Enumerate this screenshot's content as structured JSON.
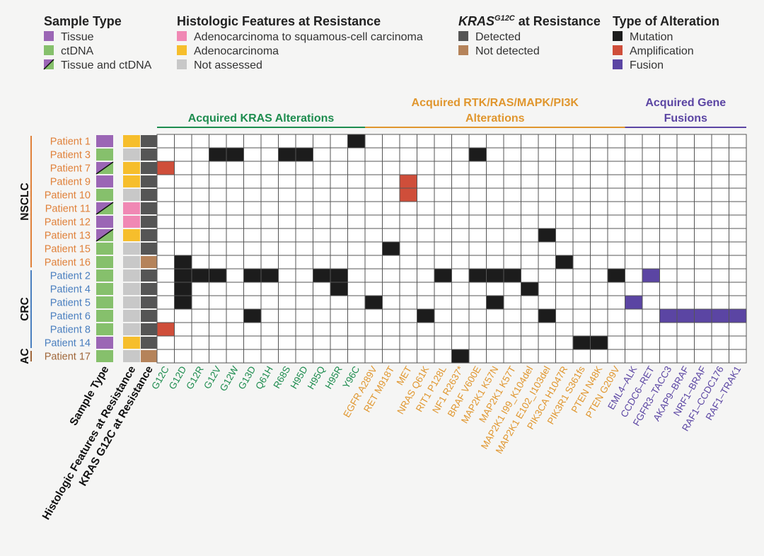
{
  "colors": {
    "tissue": "#9b66b5",
    "ctdna": "#86c06c",
    "squamous": "#f088b4",
    "adeno": "#f6be2c",
    "not_assessed": "#c8c8c8",
    "detected": "#555555",
    "not_detected": "#b5835a",
    "mutation": "#1c1c1c",
    "amplification": "#cf4e3a",
    "fusion": "#5b45a3",
    "kras_group": "#1d8c4e",
    "rtk_group": "#e0962e",
    "fusion_group": "#5b45a3",
    "nsclc": "#e0813a",
    "crc": "#4a7fbf",
    "ac": "#a0673a",
    "grid": "#555555",
    "cell_empty": "#ffffff"
  },
  "legend": {
    "sample_type": {
      "title": "Sample Type",
      "items": [
        {
          "key": "tissue",
          "label": "Tissue"
        },
        {
          "key": "ctdna",
          "label": "ctDNA"
        },
        {
          "key": "both",
          "label": "Tissue and ctDNA"
        }
      ]
    },
    "histologic": {
      "title": "Histologic Features at Resistance",
      "items": [
        {
          "key": "squamous",
          "label": "Adenocarcinoma to squamous-cell carcinoma"
        },
        {
          "key": "adeno",
          "label": "Adenocarcinoma"
        },
        {
          "key": "not_assessed",
          "label": "Not assessed"
        }
      ]
    },
    "kras": {
      "title_main": "KRAS",
      "title_sup": "G12C",
      "title_rest": " at Resistance",
      "items": [
        {
          "key": "detected",
          "label": "Detected"
        },
        {
          "key": "not_detected",
          "label": "Not detected"
        }
      ]
    },
    "alteration": {
      "title": "Type of Alteration",
      "items": [
        {
          "key": "mutation",
          "label": "Mutation"
        },
        {
          "key": "amplification",
          "label": "Amplification"
        },
        {
          "key": "fusion",
          "label": "Fusion"
        }
      ]
    }
  },
  "group_headers": [
    {
      "lines": [
        "Acquired KRAS Alterations"
      ],
      "from": 0,
      "to": 11,
      "color_key": "kras_group"
    },
    {
      "lines": [
        "Acquired RTK/RAS/MAPK/PI3K",
        "Alterations"
      ],
      "from": 12,
      "to": 26,
      "color_key": "rtk_group"
    },
    {
      "lines": [
        "Acquired Gene",
        "Fusions"
      ],
      "from": 27,
      "to": 33,
      "color_key": "fusion_group"
    }
  ],
  "annotation_column_labels": [
    "Sample Type",
    "Histologic Features at Resistance",
    "KRAS G12C at Resistance"
  ],
  "columns": [
    {
      "label": "G12C",
      "group": "kras"
    },
    {
      "label": "G12D",
      "group": "kras"
    },
    {
      "label": "G12R",
      "group": "kras"
    },
    {
      "label": "G12V",
      "group": "kras"
    },
    {
      "label": "G12W",
      "group": "kras"
    },
    {
      "label": "G13D",
      "group": "kras"
    },
    {
      "label": "Q61H",
      "group": "kras"
    },
    {
      "label": "R68S",
      "group": "kras"
    },
    {
      "label": "H95D",
      "group": "kras"
    },
    {
      "label": "H95Q",
      "group": "kras"
    },
    {
      "label": "H95R",
      "group": "kras"
    },
    {
      "label": "Y96C",
      "group": "kras"
    },
    {
      "label": "EGFR A289V",
      "group": "rtk"
    },
    {
      "label": "RET M918T",
      "group": "rtk"
    },
    {
      "label": "MET",
      "group": "rtk"
    },
    {
      "label": "NRAS Q61K",
      "group": "rtk"
    },
    {
      "label": "RIT1 P128L",
      "group": "rtk"
    },
    {
      "label": "NF1 R2637*",
      "group": "rtk"
    },
    {
      "label": "BRAF V600E",
      "group": "rtk"
    },
    {
      "label": "MAP2K1 K57N",
      "group": "rtk"
    },
    {
      "label": "MAP2K1 K57T",
      "group": "rtk"
    },
    {
      "label": "MAP2K1 I99_K104del",
      "group": "rtk"
    },
    {
      "label": "MAP2K1 E102_I103del",
      "group": "rtk"
    },
    {
      "label": "PIK3CA H1047R",
      "group": "rtk"
    },
    {
      "label": "PIK3R1 S361fs",
      "group": "rtk"
    },
    {
      "label": "PTEN N48K",
      "group": "rtk"
    },
    {
      "label": "PTEN G209V",
      "group": "rtk"
    },
    {
      "label": "EML4–ALK",
      "group": "fusion"
    },
    {
      "label": "CCDC6–RET",
      "group": "fusion"
    },
    {
      "label": "FGFR3–TACC3",
      "group": "fusion"
    },
    {
      "label": "AKAP9–BRAF",
      "group": "fusion"
    },
    {
      "label": "NRF1–BRAF",
      "group": "fusion"
    },
    {
      "label": "RAF1–CCDC176",
      "group": "fusion"
    },
    {
      "label": "RAF1–TRAK1",
      "group": "fusion"
    }
  ],
  "cancer_groups": [
    {
      "label": "NSCLC",
      "from": 0,
      "to": 9,
      "color_key": "nsclc"
    },
    {
      "label": "CRC",
      "from": 10,
      "to": 15,
      "color_key": "crc"
    },
    {
      "label": "AC",
      "from": 16,
      "to": 16,
      "color_key": "ac"
    }
  ],
  "patients": [
    {
      "label": "Patient 1",
      "sample": "tissue",
      "histology": "adeno",
      "kras": "detected",
      "alterations": [
        [
          11,
          "mutation"
        ]
      ]
    },
    {
      "label": "Patient 3",
      "sample": "ctdna",
      "histology": "not_assessed",
      "kras": "detected",
      "alterations": [
        [
          3,
          "mutation"
        ],
        [
          4,
          "mutation"
        ],
        [
          7,
          "mutation"
        ],
        [
          8,
          "mutation"
        ],
        [
          18,
          "mutation"
        ]
      ]
    },
    {
      "label": "Patient 7",
      "sample": "both",
      "histology": "adeno",
      "kras": "detected",
      "alterations": [
        [
          0,
          "amplification"
        ]
      ]
    },
    {
      "label": "Patient 9",
      "sample": "tissue",
      "histology": "adeno",
      "kras": "detected",
      "alterations": [
        [
          14,
          "amplification"
        ]
      ]
    },
    {
      "label": "Patient 10",
      "sample": "ctdna",
      "histology": "not_assessed",
      "kras": "detected",
      "alterations": [
        [
          14,
          "amplification"
        ]
      ]
    },
    {
      "label": "Patient 11",
      "sample": "both",
      "histology": "squamous",
      "kras": "detected",
      "alterations": []
    },
    {
      "label": "Patient 12",
      "sample": "tissue",
      "histology": "squamous",
      "kras": "detected",
      "alterations": []
    },
    {
      "label": "Patient 13",
      "sample": "both",
      "histology": "adeno",
      "kras": "detected",
      "alterations": [
        [
          22,
          "mutation"
        ]
      ]
    },
    {
      "label": "Patient 15",
      "sample": "ctdna",
      "histology": "not_assessed",
      "kras": "detected",
      "alterations": [
        [
          13,
          "mutation"
        ]
      ]
    },
    {
      "label": "Patient 16",
      "sample": "ctdna",
      "histology": "not_assessed",
      "kras": "not_detected",
      "alterations": [
        [
          1,
          "mutation"
        ],
        [
          23,
          "mutation"
        ]
      ]
    },
    {
      "label": "Patient 2",
      "sample": "ctdna",
      "histology": "not_assessed",
      "kras": "detected",
      "alterations": [
        [
          1,
          "mutation"
        ],
        [
          2,
          "mutation"
        ],
        [
          3,
          "mutation"
        ],
        [
          5,
          "mutation"
        ],
        [
          6,
          "mutation"
        ],
        [
          9,
          "mutation"
        ],
        [
          10,
          "mutation"
        ],
        [
          16,
          "mutation"
        ],
        [
          18,
          "mutation"
        ],
        [
          19,
          "mutation"
        ],
        [
          20,
          "mutation"
        ],
        [
          26,
          "mutation"
        ],
        [
          28,
          "fusion"
        ]
      ]
    },
    {
      "label": "Patient 4",
      "sample": "ctdna",
      "histology": "not_assessed",
      "kras": "detected",
      "alterations": [
        [
          1,
          "mutation"
        ],
        [
          10,
          "mutation"
        ],
        [
          21,
          "mutation"
        ]
      ]
    },
    {
      "label": "Patient 5",
      "sample": "ctdna",
      "histology": "not_assessed",
      "kras": "detected",
      "alterations": [
        [
          1,
          "mutation"
        ],
        [
          12,
          "mutation"
        ],
        [
          19,
          "mutation"
        ],
        [
          27,
          "fusion"
        ]
      ]
    },
    {
      "label": "Patient 6",
      "sample": "ctdna",
      "histology": "not_assessed",
      "kras": "detected",
      "alterations": [
        [
          5,
          "mutation"
        ],
        [
          15,
          "mutation"
        ],
        [
          22,
          "mutation"
        ],
        [
          29,
          "fusion"
        ],
        [
          30,
          "fusion"
        ],
        [
          31,
          "fusion"
        ],
        [
          32,
          "fusion"
        ],
        [
          33,
          "fusion"
        ]
      ]
    },
    {
      "label": "Patient 8",
      "sample": "ctdna",
      "histology": "not_assessed",
      "kras": "detected",
      "alterations": [
        [
          0,
          "amplification"
        ]
      ]
    },
    {
      "label": "Patient 14",
      "sample": "tissue",
      "histology": "adeno",
      "kras": "detected",
      "alterations": [
        [
          24,
          "mutation"
        ],
        [
          25,
          "mutation"
        ]
      ]
    },
    {
      "label": "Patient 17",
      "sample": "ctdna",
      "histology": "not_assessed",
      "kras": "not_detected",
      "alterations": [
        [
          17,
          "mutation"
        ]
      ]
    }
  ]
}
